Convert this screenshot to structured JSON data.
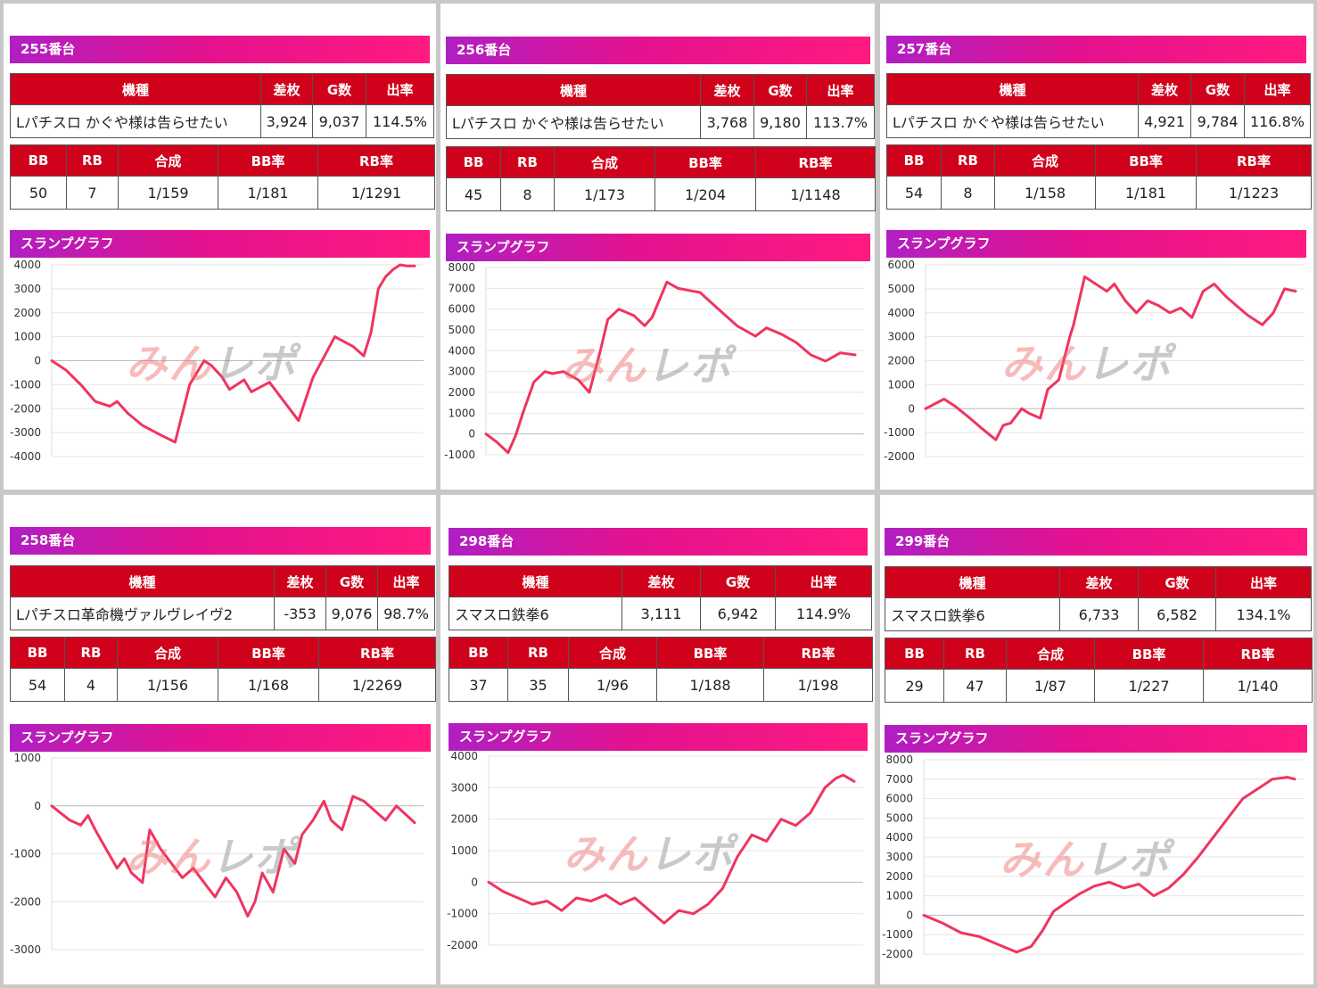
{
  "labels": {
    "model": "機種",
    "diff": "差枚",
    "games": "G数",
    "rate": "出率",
    "bb": "BB",
    "rb": "RB",
    "combined": "合成",
    "bb_rate": "BB率",
    "rb_rate": "RB率",
    "graph_title": "スランプグラフ"
  },
  "watermark": {
    "part1": "みん",
    "part2": "レポ"
  },
  "colors": {
    "header_red": "#d0021b",
    "line": "#f0345f",
    "gradient_start": "#b01fc3",
    "gradient_end": "#ff1a80"
  },
  "machines": [
    {
      "title": "255番台",
      "model": "Lパチスロ かぐや様は告らせたい",
      "diff": "3,924",
      "games": "9,037",
      "rate": "114.5%",
      "bb": "50",
      "rb": "7",
      "combined": "1/159",
      "bb_rate": "1/181",
      "rb_rate": "1/1291",
      "chart_data": {
        "type": "line",
        "yticks": [
          "4000",
          "3000",
          "2000",
          "1000",
          "0",
          "-1000",
          "-2000",
          "-3000",
          "-4000"
        ],
        "ylim": [
          -4000,
          4000
        ],
        "x": [
          0,
          4,
          8,
          12,
          16,
          18,
          21,
          25,
          30,
          34,
          38,
          42,
          44,
          47,
          49,
          51,
          53,
          55,
          60,
          64,
          68,
          72,
          78,
          83,
          86,
          88,
          90,
          92,
          94,
          96,
          98,
          100
        ],
        "values": [
          0,
          -400,
          -1000,
          -1700,
          -1900,
          -1700,
          -2200,
          -2700,
          -3100,
          -3400,
          -1000,
          0,
          -200,
          -700,
          -1200,
          -1000,
          -800,
          -1300,
          -900,
          -1700,
          -2500,
          -700,
          1000,
          600,
          200,
          1200,
          3000,
          3500,
          3800,
          4000,
          3950,
          3950
        ]
      }
    },
    {
      "title": "256番台",
      "model": "Lパチスロ かぐや様は告らせたい",
      "diff": "3,768",
      "games": "9,180",
      "rate": "113.7%",
      "bb": "45",
      "rb": "8",
      "combined": "1/173",
      "bb_rate": "1/204",
      "rb_rate": "1/1148",
      "chart_data": {
        "type": "line",
        "yticks": [
          "8000",
          "7000",
          "6000",
          "5000",
          "4000",
          "3000",
          "2000",
          "1000",
          "0",
          "-1000"
        ],
        "ylim": [
          -1000,
          8000
        ],
        "x": [
          0,
          3,
          6,
          8,
          10,
          13,
          16,
          18,
          21,
          25,
          28,
          31,
          33,
          36,
          40,
          43,
          45,
          49,
          52,
          55,
          58,
          63,
          68,
          73,
          76,
          80,
          84,
          88,
          92,
          96,
          100
        ],
        "values": [
          0,
          -400,
          -900,
          -100,
          1000,
          2500,
          3000,
          2900,
          3000,
          2600,
          2000,
          4000,
          5500,
          6000,
          5700,
          5200,
          5600,
          7300,
          7000,
          6900,
          6800,
          6000,
          5200,
          4700,
          5100,
          4800,
          4400,
          3800,
          3500,
          3900,
          3800
        ]
      }
    },
    {
      "title": "257番台",
      "model": "Lパチスロ かぐや様は告らせたい",
      "diff": "4,921",
      "games": "9,784",
      "rate": "116.8%",
      "bb": "54",
      "rb": "8",
      "combined": "1/158",
      "bb_rate": "1/181",
      "rb_rate": "1/1223",
      "chart_data": {
        "type": "line",
        "yticks": [
          "6000",
          "5000",
          "4000",
          "3000",
          "2000",
          "1000",
          "0",
          "-1000",
          "-2000"
        ],
        "ylim": [
          -2000,
          6000
        ],
        "x": [
          0,
          5,
          8,
          12,
          15,
          19,
          21,
          23,
          26,
          28,
          31,
          33,
          36,
          39,
          40,
          43,
          46,
          49,
          51,
          54,
          57,
          60,
          63,
          66,
          69,
          72,
          75,
          78,
          81,
          84,
          87,
          91,
          94,
          97,
          100
        ],
        "values": [
          0,
          400,
          100,
          -400,
          -800,
          -1300,
          -700,
          -600,
          0,
          -200,
          -400,
          800,
          1200,
          3000,
          3500,
          5500,
          5200,
          4900,
          5200,
          4500,
          4000,
          4500,
          4300,
          4000,
          4200,
          3800,
          4900,
          5200,
          4700,
          4300,
          3900,
          3500,
          4000,
          5000,
          4900
        ]
      }
    },
    {
      "title": "258番台",
      "model": "Lパチスロ革命機ヴァルヴレイヴ2",
      "diff": "-353",
      "games": "9,076",
      "rate": "98.7%",
      "bb": "54",
      "rb": "4",
      "combined": "1/156",
      "bb_rate": "1/168",
      "rb_rate": "1/2269",
      "chart_data": {
        "type": "line",
        "yticks": [
          "1000",
          "0",
          "-1000",
          "-2000",
          "-3000"
        ],
        "ylim": [
          -3000,
          1000
        ],
        "x": [
          0,
          5,
          8,
          10,
          12,
          15,
          18,
          20,
          22,
          25,
          27,
          30,
          33,
          36,
          39,
          42,
          45,
          48,
          51,
          54,
          56,
          58,
          61,
          64,
          67,
          69,
          72,
          75,
          77,
          80,
          83,
          86,
          89,
          92,
          95,
          100
        ],
        "values": [
          0,
          -300,
          -400,
          -200,
          -500,
          -900,
          -1300,
          -1100,
          -1400,
          -1600,
          -500,
          -900,
          -1200,
          -1500,
          -1300,
          -1600,
          -1900,
          -1500,
          -1800,
          -2300,
          -2000,
          -1400,
          -1800,
          -900,
          -1200,
          -600,
          -300,
          100,
          -300,
          -500,
          200,
          100,
          -100,
          -300,
          0,
          -350
        ]
      }
    },
    {
      "title": "298番台",
      "model": "スマスロ鉄拳6",
      "diff": "3,111",
      "games": "6,942",
      "rate": "114.9%",
      "bb": "37",
      "rb": "35",
      "combined": "1/96",
      "bb_rate": "1/188",
      "rb_rate": "1/198",
      "chart_data": {
        "type": "line",
        "yticks": [
          "4000",
          "3000",
          "2000",
          "1000",
          "0",
          "-1000",
          "-2000"
        ],
        "ylim": [
          -2000,
          4000
        ],
        "x": [
          0,
          4,
          8,
          12,
          16,
          20,
          24,
          28,
          32,
          36,
          40,
          44,
          48,
          52,
          56,
          60,
          64,
          68,
          72,
          76,
          80,
          84,
          88,
          92,
          95,
          97,
          100
        ],
        "values": [
          0,
          -300,
          -500,
          -700,
          -600,
          -900,
          -500,
          -600,
          -400,
          -700,
          -500,
          -900,
          -1300,
          -900,
          -1000,
          -700,
          -200,
          800,
          1500,
          1300,
          2000,
          1800,
          2200,
          3000,
          3300,
          3400,
          3200
        ]
      }
    },
    {
      "title": "299番台",
      "model": "スマスロ鉄拳6",
      "diff": "6,733",
      "games": "6,582",
      "rate": "134.1%",
      "bb": "29",
      "rb": "47",
      "combined": "1/87",
      "bb_rate": "1/227",
      "rb_rate": "1/140",
      "chart_data": {
        "type": "line",
        "yticks": [
          "8000",
          "7000",
          "6000",
          "5000",
          "4000",
          "3000",
          "2000",
          "1000",
          "0",
          "-1000",
          "-2000"
        ],
        "ylim": [
          -2000,
          8000
        ],
        "x": [
          0,
          5,
          10,
          15,
          20,
          25,
          29,
          32,
          35,
          38,
          42,
          46,
          50,
          54,
          58,
          62,
          66,
          70,
          74,
          78,
          82,
          86,
          90,
          94,
          98,
          100
        ],
        "values": [
          0,
          -400,
          -900,
          -1100,
          -1500,
          -1900,
          -1600,
          -800,
          200,
          600,
          1100,
          1500,
          1700,
          1400,
          1600,
          1000,
          1400,
          2100,
          3000,
          4000,
          5000,
          6000,
          6500,
          7000,
          7100,
          7000
        ]
      }
    }
  ]
}
